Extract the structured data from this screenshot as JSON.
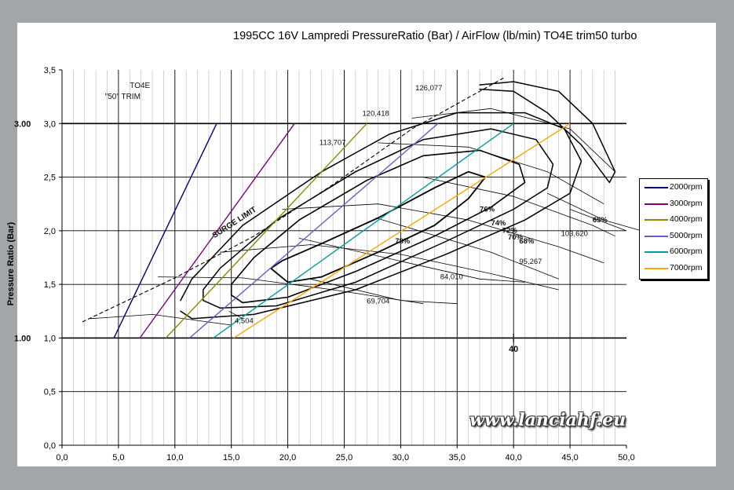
{
  "chart_data": {
    "type": "line",
    "title": "1995CC 16V Lampredi PressureRatio (Bar) / AirFlow (lb/min) TO4E trim50 turbo",
    "xlabel": "",
    "ylabel": "Pressure Ratio (Bar)",
    "xlim": [
      0,
      50
    ],
    "ylim": [
      0,
      3.5
    ],
    "x_ticks": [
      "0,0",
      "5,0",
      "10,0",
      "15,0",
      "20,0",
      "25,0",
      "30,0",
      "35,0",
      "40,0",
      "45,0",
      "50,0"
    ],
    "y_ticks": [
      "0,0",
      "0,5",
      "1,0",
      "1,5",
      "2,0",
      "2,5",
      "3,0",
      "3,5"
    ],
    "grid": true,
    "legend_position": "right",
    "series": [
      {
        "name": "2000rpm",
        "color": "#000080",
        "x": [
          4.6,
          13.7
        ],
        "y": [
          1.0,
          3.0
        ]
      },
      {
        "name": "3000rpm",
        "color": "#800080",
        "x": [
          6.9,
          20.6
        ],
        "y": [
          1.0,
          3.0
        ]
      },
      {
        "name": "4000rpm",
        "color": "#8a8a00",
        "x": [
          9.2,
          27.0
        ],
        "y": [
          1.0,
          3.0
        ]
      },
      {
        "name": "5000rpm",
        "color": "#6a5acd",
        "x": [
          11.3,
          33.3
        ],
        "y": [
          1.0,
          3.0
        ]
      },
      {
        "name": "6000rpm",
        "color": "#00a0a0",
        "x": [
          13.4,
          40.0
        ],
        "y": [
          1.0,
          3.0
        ]
      },
      {
        "name": "7000rpm",
        "color": "#ffa500",
        "x": [
          15.2,
          45.0
        ],
        "y": [
          1.0,
          3.0
        ]
      }
    ],
    "annotations": {
      "trim_top": "TO4E",
      "trim_bottom": "\"50\" TRIM",
      "surge": "SURGE LIMIT",
      "speeds": [
        "126,077",
        "120,418",
        "113,707",
        "103,620",
        "95,267",
        "84,010",
        "69,704",
        "4,504"
      ],
      "efficiencies": [
        "78%",
        "76%",
        "74%",
        "72%",
        "70%",
        "68%",
        "65%"
      ],
      "left_300": "3.00",
      "left_100": "1.00",
      "bottom_40": "40"
    },
    "map_bw_color": "#000000"
  },
  "watermark": "www.lanciahf.eu"
}
